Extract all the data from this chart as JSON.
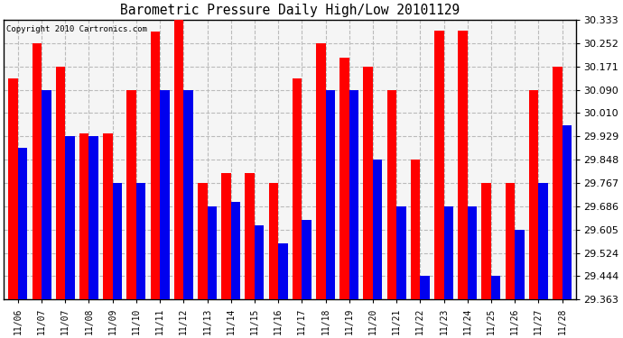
{
  "title": "Barometric Pressure Daily High/Low 20101129",
  "copyright": "Copyright 2010 Cartronics.com",
  "dates": [
    "11/06",
    "11/07",
    "11/07",
    "11/08",
    "11/09",
    "11/10",
    "11/11",
    "11/12",
    "11/13",
    "11/14",
    "11/15",
    "11/16",
    "11/17",
    "11/18",
    "11/19",
    "11/20",
    "11/21",
    "11/22",
    "11/23",
    "11/24",
    "11/25",
    "11/26",
    "11/27",
    "11/28"
  ],
  "highs": [
    30.13,
    30.252,
    30.171,
    29.94,
    29.94,
    30.09,
    30.29,
    30.333,
    29.767,
    29.8,
    29.8,
    29.767,
    30.13,
    30.252,
    30.2,
    30.171,
    30.09,
    29.848,
    30.295,
    30.295,
    29.767,
    29.767,
    30.09,
    30.171
  ],
  "lows": [
    29.888,
    30.09,
    29.929,
    29.929,
    29.767,
    29.767,
    30.09,
    30.09,
    29.686,
    29.7,
    29.62,
    29.557,
    29.64,
    30.09,
    30.09,
    29.848,
    29.686,
    29.444,
    29.686,
    29.686,
    29.444,
    29.605,
    29.767,
    29.968
  ],
  "high_color": "#ff0000",
  "low_color": "#0000ee",
  "bg_color": "#ffffff",
  "plot_bg_color": "#f5f5f5",
  "grid_color": "#bbbbbb",
  "ymin": 29.363,
  "ymax": 30.333,
  "yticks": [
    29.363,
    29.444,
    29.524,
    29.605,
    29.686,
    29.767,
    29.848,
    29.929,
    30.01,
    30.09,
    30.171,
    30.252,
    30.333
  ],
  "bar_width": 0.4,
  "figwidth": 6.9,
  "figheight": 3.75,
  "dpi": 100
}
